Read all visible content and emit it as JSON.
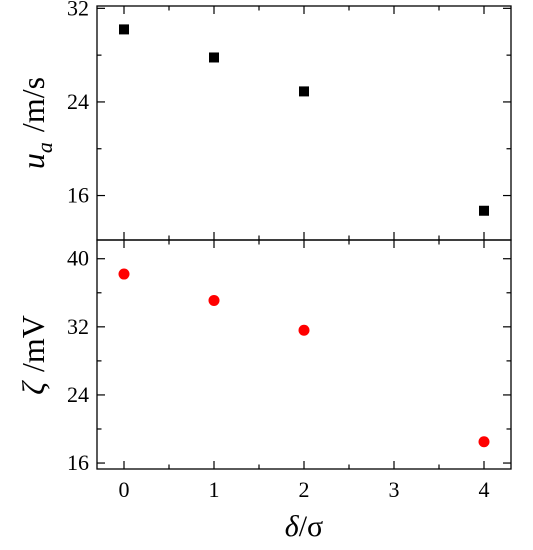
{
  "chart_data": [
    {
      "type": "scatter",
      "panel": "top",
      "x": [
        0,
        1,
        2,
        4
      ],
      "y": [
        30.2,
        27.8,
        24.9,
        14.7
      ],
      "ylabel": "u_a /m/s",
      "ylabel_symbol": "u",
      "ylabel_subscript": "a",
      "ylabel_unit": "/m/s",
      "ylim": [
        12.2,
        32.2
      ],
      "yticks": [
        16,
        24,
        32
      ],
      "xlim": [
        -0.3,
        4.3
      ],
      "marker": "square",
      "color": "#000000",
      "grid": false
    },
    {
      "type": "scatter",
      "panel": "bottom",
      "x": [
        0,
        1,
        2,
        4
      ],
      "y": [
        38.2,
        35.1,
        31.6,
        18.5
      ],
      "ylabel": "ζ /mV",
      "ylabel_symbol": "ζ",
      "ylabel_unit": "/mV",
      "ylim": [
        15.3,
        42.2
      ],
      "yticks": [
        16,
        24,
        32,
        40
      ],
      "xlabel": "δ/σ",
      "xlabel_symbol": "δ",
      "xlabel_rest": "/σ",
      "xticks": [
        0,
        1,
        2,
        3,
        4
      ],
      "xlim": [
        -0.3,
        4.3
      ],
      "marker": "circle",
      "color": "#ff0000",
      "grid": false
    }
  ]
}
